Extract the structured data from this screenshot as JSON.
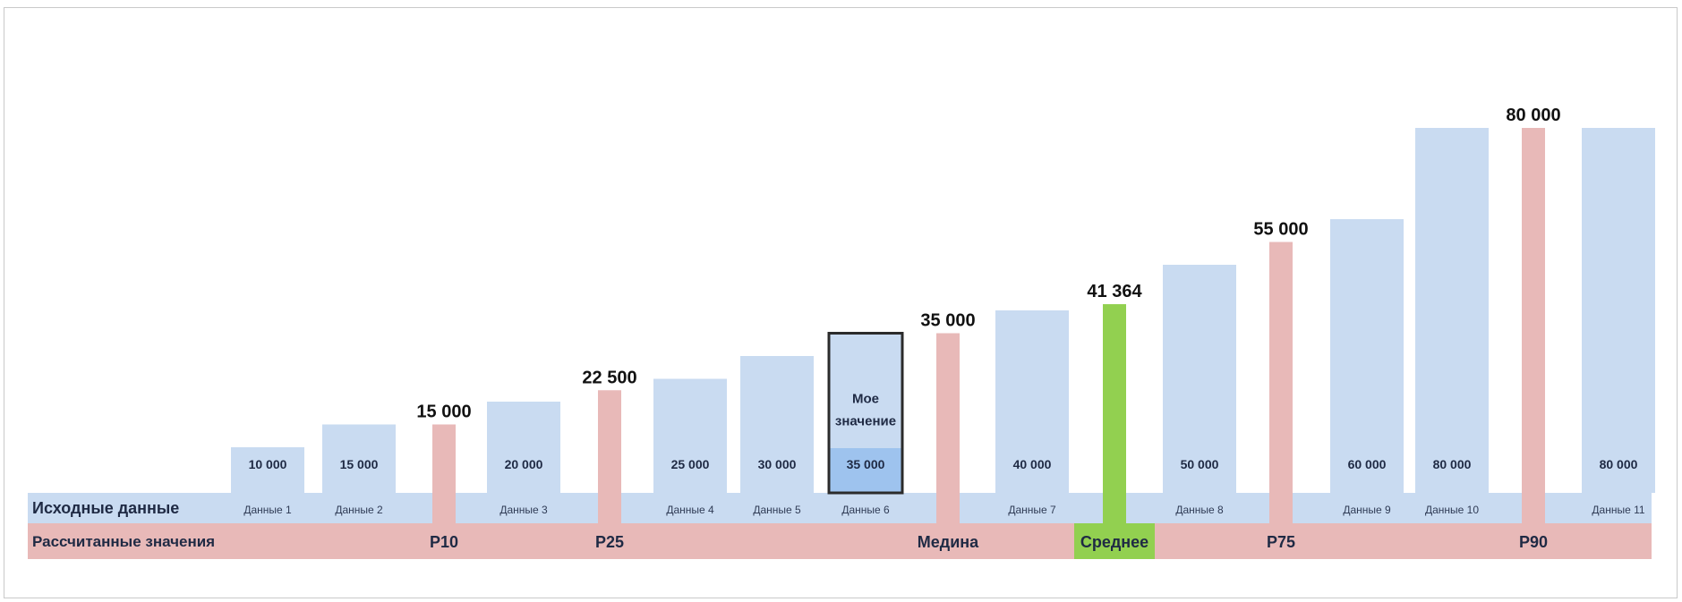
{
  "chart_data": {
    "type": "bar",
    "rows": {
      "source_label": "Исходные данные",
      "calculated_label": "Рассчитанные значения"
    },
    "colors": {
      "data_bar": "#c9dbf1",
      "percentile_bar": "#e8b9b8",
      "mean_bar": "#92d050",
      "my_value_fill": "#9ec3ee",
      "my_value_border": "#2b2b2b",
      "source_row": "#c9dbf1",
      "calculated_row": "#e8b9b8",
      "label_text": "#1f2a44"
    },
    "ylim": [
      0,
      120000
    ],
    "data_bars": [
      {
        "category": "Данные 1",
        "value": 10000,
        "label": "10 000"
      },
      {
        "category": "Данные 2",
        "value": 15000,
        "label": "15 000"
      },
      {
        "category": "Данные 3",
        "value": 20000,
        "label": "20 000"
      },
      {
        "category": "Данные 4",
        "value": 25000,
        "label": "25 000"
      },
      {
        "category": "Данные 5",
        "value": 30000,
        "label": "30 000"
      },
      {
        "category": "Данные 6",
        "value": 35000,
        "label": "35 000",
        "highlight": true,
        "highlight_text": [
          "Мое",
          "значение"
        ]
      },
      {
        "category": "Данные 7",
        "value": 40000,
        "label": "40 000"
      },
      {
        "category": "Данные 8",
        "value": 50000,
        "label": "50 000"
      },
      {
        "category": "Данные 9",
        "value": 60000,
        "label": "60 000"
      },
      {
        "category": "Данные 10",
        "value": 80000,
        "label": "80 000"
      },
      {
        "category": "Данные 11",
        "value": 80000,
        "label": "80 000"
      }
    ],
    "stats": [
      {
        "name": "P10",
        "value": 15000,
        "label": "15 000",
        "kind": "percentile"
      },
      {
        "name": "P25",
        "value": 22500,
        "label": "22 500",
        "kind": "percentile"
      },
      {
        "name": "Медина",
        "value": 35000,
        "label": "35 000",
        "kind": "percentile"
      },
      {
        "name": "Среднее",
        "value": 41364,
        "label": "41 364",
        "kind": "mean"
      },
      {
        "name": "P75",
        "value": 55000,
        "label": "55 000",
        "kind": "percentile"
      },
      {
        "name": "P90",
        "value": 80000,
        "label": "80 000",
        "kind": "percentile"
      }
    ],
    "order": [
      "d0",
      "d1",
      "s0",
      "d2",
      "s1",
      "d3",
      "d4",
      "d5",
      "s2",
      "d6",
      "s3",
      "d7",
      "s4",
      "d8",
      "d9",
      "s5",
      "d10"
    ]
  }
}
